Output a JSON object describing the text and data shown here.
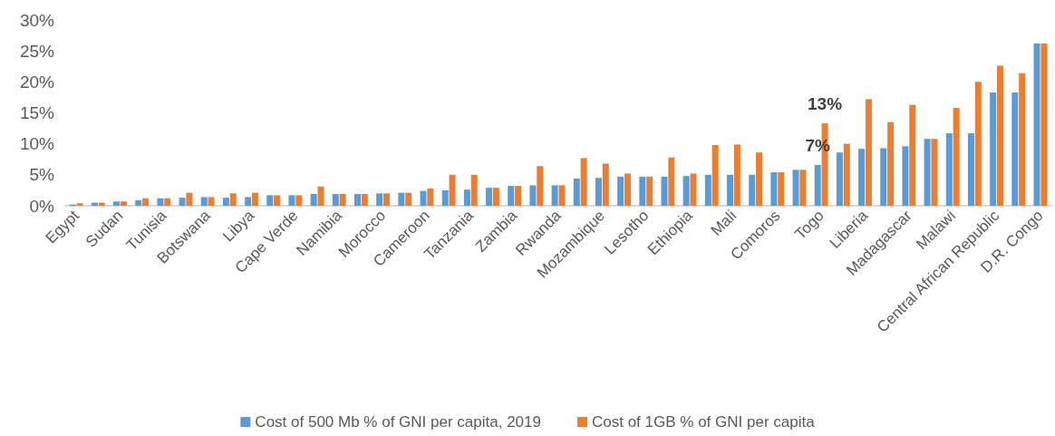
{
  "chart_data": {
    "type": "bar",
    "categories": [
      "Egypt",
      null,
      "Sudan",
      null,
      "Tunisia",
      null,
      "Botswana",
      null,
      "Libya",
      null,
      "Cape Verde",
      null,
      "Namibia",
      null,
      "Morocco",
      null,
      "Cameroon",
      null,
      "Tanzania",
      null,
      "Zambia",
      null,
      "Rwanda",
      null,
      "Mozambique",
      null,
      "Lesotho",
      null,
      "Ethiopia",
      null,
      "Mali",
      null,
      "Comoros",
      null,
      "Togo",
      null,
      "Liberia",
      null,
      "Madagascar",
      null,
      "Malawi",
      null,
      "Central African Republic",
      null,
      "D.R. Congo"
    ],
    "series": [
      {
        "name": "Cost of 500 Mb % of GNI per capita, 2019",
        "color": "#5b9bd5",
        "values": [
          0.2,
          0.5,
          0.7,
          0.9,
          1.2,
          1.3,
          1.4,
          1.3,
          1.4,
          1.7,
          1.7,
          1.9,
          1.9,
          1.9,
          2.0,
          2.1,
          2.4,
          2.5,
          2.6,
          2.9,
          3.2,
          3.3,
          3.3,
          4.4,
          4.5,
          4.7,
          4.7,
          4.7,
          4.8,
          5.0,
          5.0,
          5.0,
          5.4,
          5.8,
          6.6,
          8.6,
          9.2,
          9.3,
          9.6,
          10.8,
          11.7,
          11.7,
          18.3,
          18.3,
          26.2
        ],
        "value_labels": [
          null,
          null,
          null,
          null,
          null,
          null,
          null,
          null,
          null,
          null,
          null,
          null,
          null,
          null,
          null,
          null,
          null,
          null,
          null,
          null,
          null,
          null,
          null,
          null,
          null,
          null,
          null,
          null,
          null,
          null,
          null,
          null,
          null,
          null,
          "7%",
          null,
          null,
          null,
          null,
          null,
          null,
          null,
          null,
          null,
          null
        ]
      },
      {
        "name": "Cost of 1GB % of GNI per capita",
        "color": "#ed7d31",
        "values": [
          0.4,
          0.5,
          0.7,
          1.2,
          1.2,
          2.1,
          1.4,
          2.0,
          2.1,
          1.7,
          1.7,
          3.1,
          1.9,
          1.9,
          2.0,
          2.1,
          2.8,
          5.0,
          5.0,
          2.9,
          3.2,
          6.4,
          3.3,
          7.7,
          6.8,
          5.2,
          4.7,
          7.8,
          5.2,
          9.8,
          9.9,
          8.6,
          5.4,
          5.8,
          13.3,
          10.0,
          17.2,
          13.5,
          16.3,
          10.8,
          15.8,
          20.0,
          22.6,
          21.4,
          26.2
        ],
        "value_labels": [
          null,
          null,
          null,
          null,
          null,
          null,
          null,
          null,
          null,
          null,
          null,
          null,
          null,
          null,
          null,
          null,
          null,
          null,
          null,
          null,
          null,
          null,
          null,
          null,
          null,
          null,
          null,
          null,
          null,
          null,
          null,
          null,
          null,
          null,
          "13%",
          null,
          null,
          null,
          null,
          null,
          null,
          null,
          null,
          null,
          null
        ]
      }
    ],
    "ylim": [
      0,
      30
    ],
    "yticks": [
      {
        "value": 0,
        "label": "0%"
      },
      {
        "value": 5,
        "label": "5%"
      },
      {
        "value": 10,
        "label": "10%"
      },
      {
        "value": 15,
        "label": "15%"
      },
      {
        "value": 20,
        "label": "20%"
      },
      {
        "value": 25,
        "label": "25%"
      },
      {
        "value": 30,
        "label": "30%"
      }
    ],
    "grid": false,
    "legend": "bottom"
  }
}
